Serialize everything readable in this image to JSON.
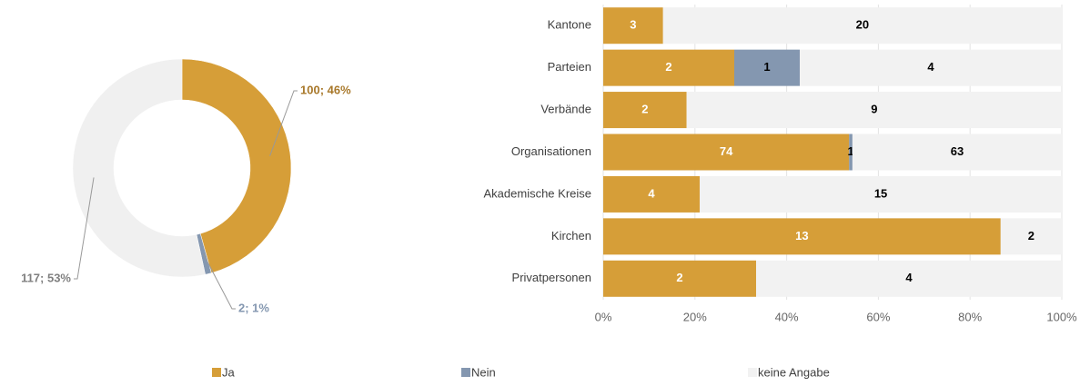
{
  "chart_data": [
    {
      "type": "donut",
      "values": [
        100,
        2,
        117
      ],
      "value_labels": [
        "100; 46%",
        "2; 1%",
        "117; 53%"
      ],
      "colors": [
        "#D69E38",
        "#8497B0",
        "#F0F0F0"
      ],
      "label_colors": [
        "#A8782A",
        "#8497B0",
        "#808080"
      ]
    },
    {
      "type": "bar",
      "orientation": "horizontal",
      "stacking": "percent",
      "categories": [
        "Kantone",
        "Parteien",
        "Verbände",
        "Organisationen",
        "Akademische Kreise",
        "Kirchen",
        "Privatpersonen"
      ],
      "series": [
        {
          "name": "Ja",
          "color": "#D69E38",
          "label_color": "#FFFFFF",
          "values": [
            3,
            2,
            2,
            74,
            4,
            13,
            2
          ]
        },
        {
          "name": "Nein",
          "color": "#8497B0",
          "label_color": "#000000",
          "values": [
            null,
            1,
            null,
            1,
            null,
            null,
            null
          ]
        },
        {
          "name": "keine Angabe",
          "color": "#F2F2F2",
          "label_color": "#000000",
          "values": [
            20,
            4,
            9,
            63,
            15,
            2,
            4
          ]
        }
      ],
      "xlim": [
        0,
        100
      ],
      "xticks": [
        {
          "value": 0,
          "label": "0%"
        },
        {
          "value": 20,
          "label": "20%"
        },
        {
          "value": 40,
          "label": "40%"
        },
        {
          "value": 60,
          "label": "60%"
        },
        {
          "value": 80,
          "label": "80%"
        },
        {
          "value": 100,
          "label": "100%"
        }
      ],
      "grid": true,
      "legend": "bottom"
    }
  ]
}
